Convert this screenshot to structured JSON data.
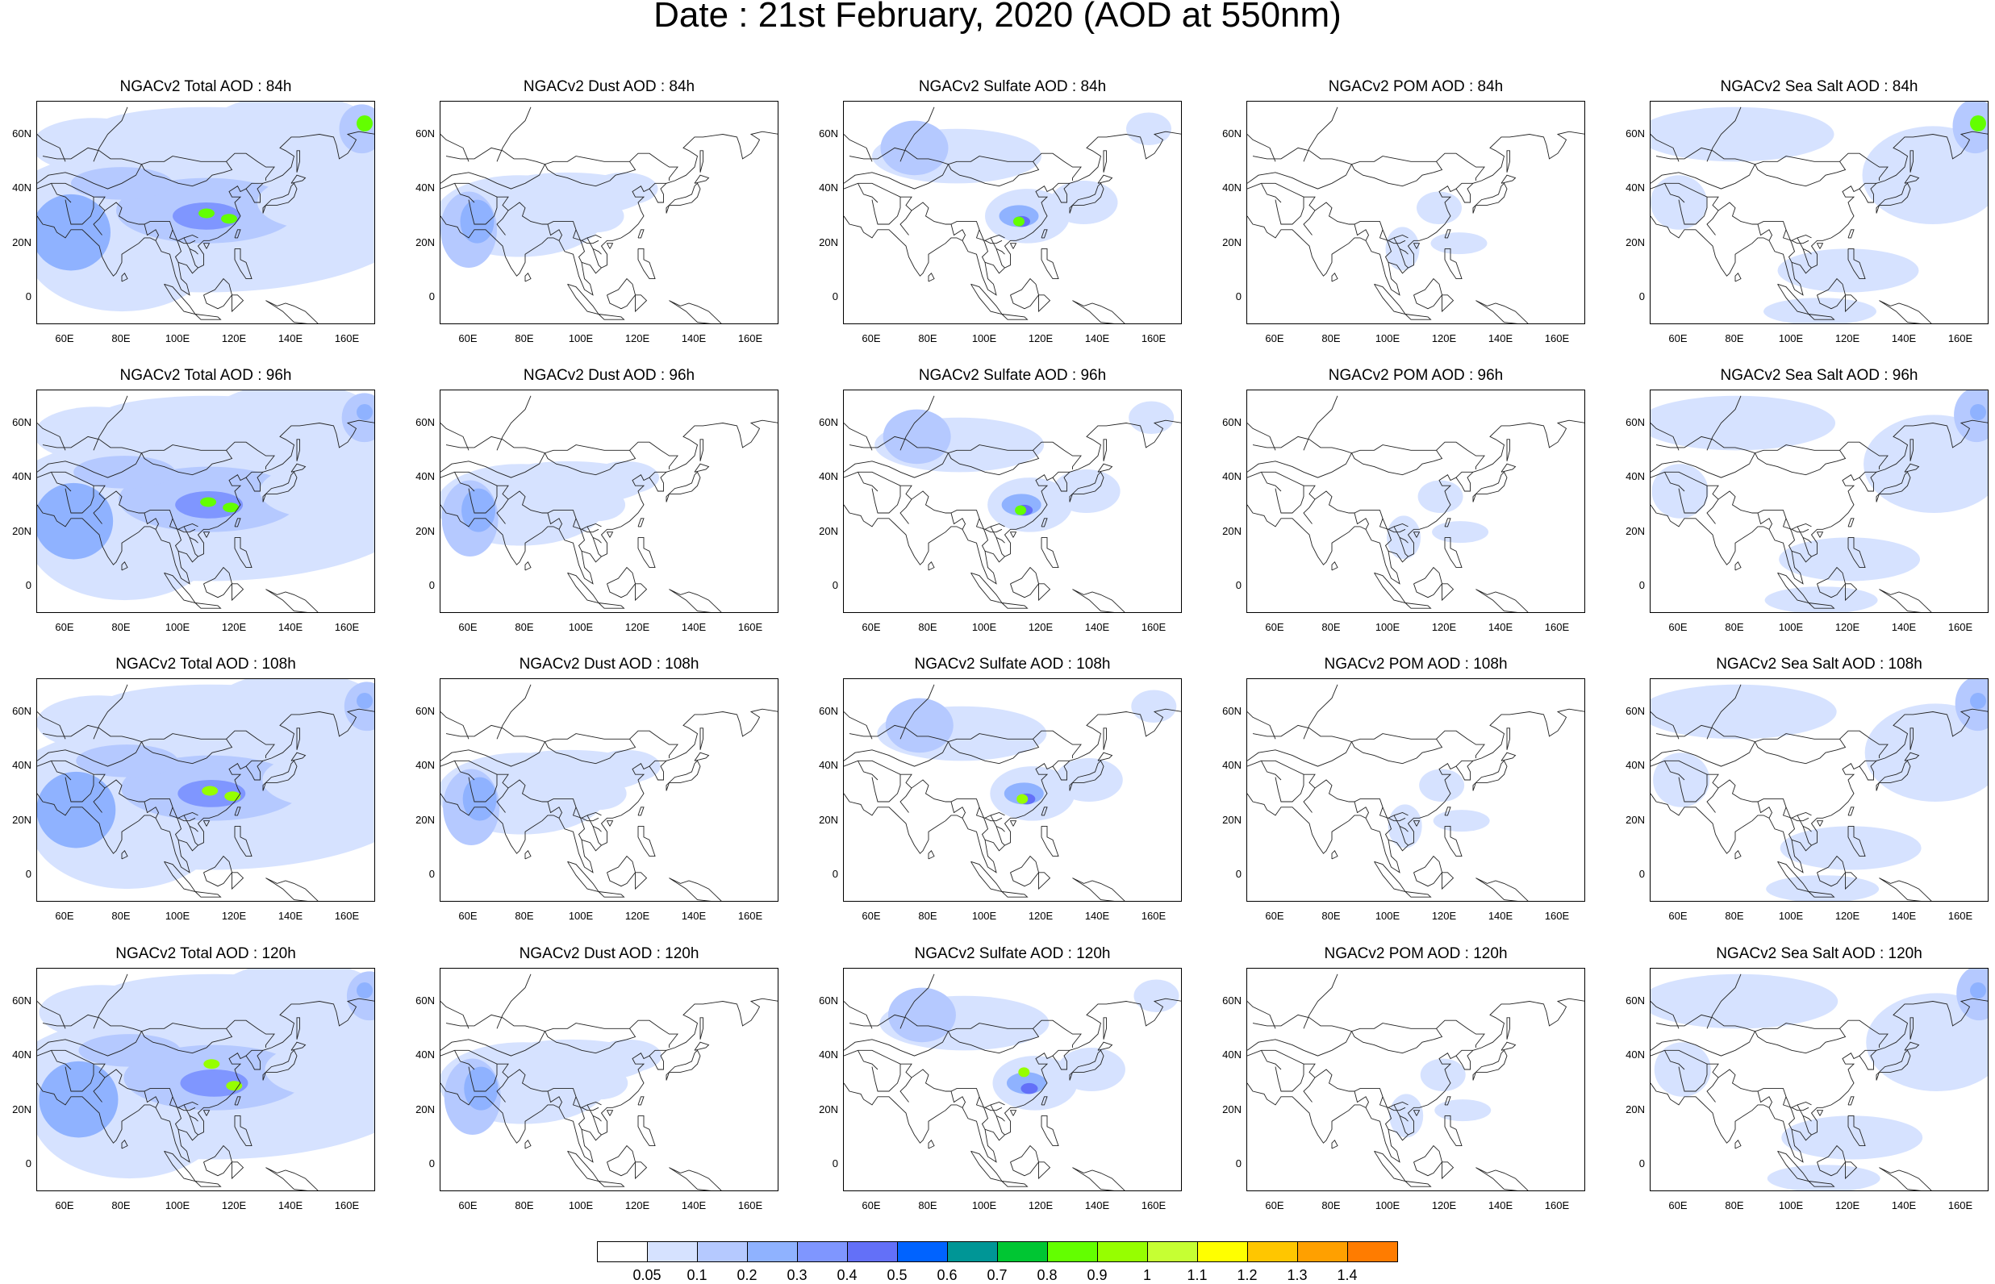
{
  "title": "Date : 21st February, 2020 (AOD at 550nm)",
  "panels": [
    [
      "NGACv2 Total AOD : 84h",
      "NGACv2 Dust AOD : 84h",
      "NGACv2 Sulfate AOD : 84h",
      "NGACv2 POM AOD : 84h",
      "NGACv2 Sea Salt AOD : 84h"
    ],
    [
      "NGACv2 Total AOD : 96h",
      "NGACv2 Dust AOD : 96h",
      "NGACv2 Sulfate AOD : 96h",
      "NGACv2 POM AOD : 96h",
      "NGACv2 Sea Salt AOD : 96h"
    ],
    [
      "NGACv2 Total AOD : 108h",
      "NGACv2 Dust AOD : 108h",
      "NGACv2 Sulfate AOD : 108h",
      "NGACv2 POM AOD : 108h",
      "NGACv2 Sea Salt AOD : 108h"
    ],
    [
      "NGACv2 Total AOD : 120h",
      "NGACv2 Dust AOD : 120h",
      "NGACv2 Sulfate AOD : 120h",
      "NGACv2 POM AOD : 120h",
      "NGACv2 Sea Salt  AOD : 120h"
    ]
  ],
  "lat_ticks": [
    "60N",
    "40N",
    "20N",
    "0"
  ],
  "lon_ticks": [
    "60E",
    "80E",
    "100E",
    "120E",
    "140E",
    "160E"
  ],
  "colorbar": {
    "labels": [
      "0.05",
      "0.1",
      "0.2",
      "0.3",
      "0.4",
      "0.5",
      "0.6",
      "0.7",
      "0.8",
      "0.9",
      "1",
      "1.1",
      "1.2",
      "1.3",
      "1.4"
    ],
    "colors": [
      "#ffffff",
      "#d6e2ff",
      "#b5c9ff",
      "#8fb2ff",
      "#7f96ff",
      "#6370f8",
      "#0063ff",
      "#009696",
      "#00c633",
      "#63ff00",
      "#96ff00",
      "#c6ff33",
      "#ffff00",
      "#ffc600",
      "#ffa000",
      "#ff7c00",
      "#ff1900"
    ]
  }
}
